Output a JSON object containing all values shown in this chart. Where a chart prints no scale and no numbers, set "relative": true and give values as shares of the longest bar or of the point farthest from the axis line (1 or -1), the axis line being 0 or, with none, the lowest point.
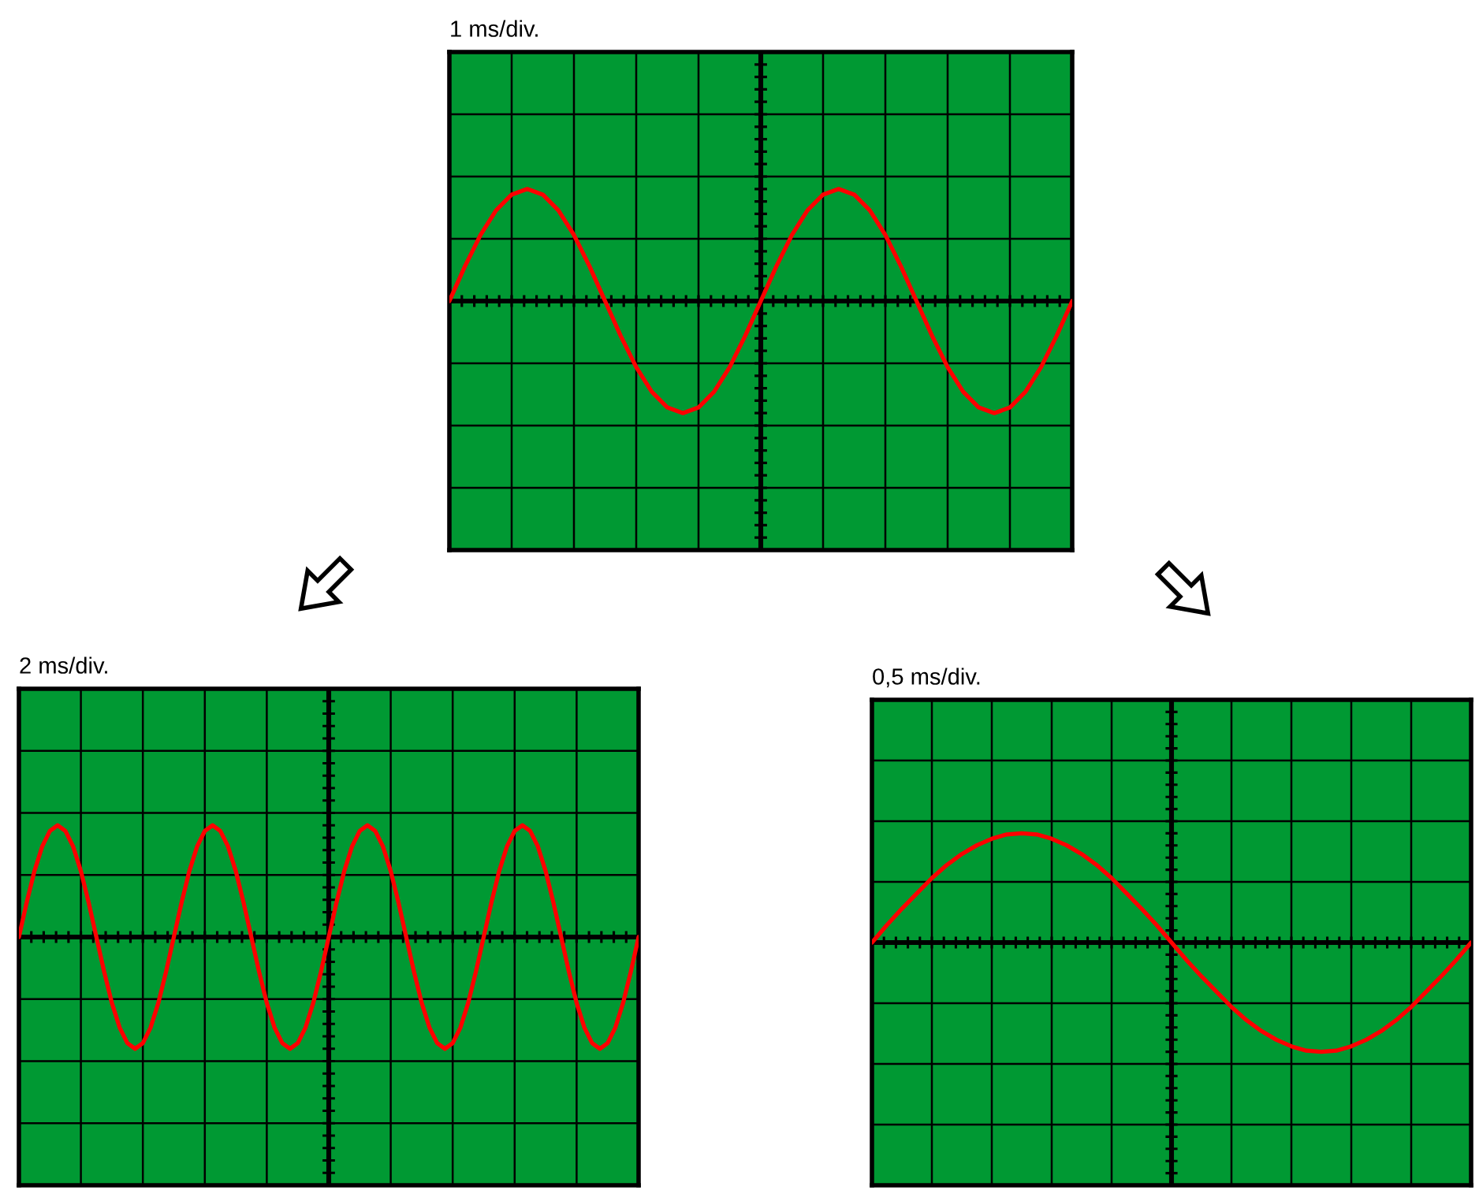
{
  "chart_data": [
    {
      "type": "line",
      "title": "1 ms/div.",
      "relative": true,
      "grid": true,
      "categories": [
        null,
        null,
        null,
        null,
        null,
        null,
        null,
        null,
        null,
        null,
        null,
        null,
        null,
        null,
        null,
        null,
        null,
        null,
        null,
        null,
        null,
        null,
        null,
        null,
        null,
        null,
        null,
        null,
        null,
        null,
        null,
        null,
        null,
        null,
        null,
        null,
        null,
        null,
        null,
        null,
        null
      ],
      "series": [
        {
          "color": "#ff0000",
          "values": [
            0,
            0.31,
            0.59,
            0.81,
            0.95,
            1,
            0.95,
            0.81,
            0.59,
            0.31,
            0,
            -0.31,
            -0.59,
            -0.81,
            -0.95,
            -1,
            -0.95,
            -0.81,
            -0.59,
            -0.31,
            0,
            0.31,
            0.59,
            0.81,
            0.95,
            1,
            0.95,
            0.81,
            0.59,
            0.31,
            0,
            -0.31,
            -0.59,
            -0.81,
            -0.95,
            -1,
            -0.95,
            -0.81,
            -0.59,
            -0.31,
            0
          ]
        }
      ]
    },
    {
      "type": "line",
      "title": "2 ms/div.",
      "relative": true,
      "grid": true,
      "categories": [
        null,
        null,
        null,
        null,
        null,
        null,
        null,
        null,
        null,
        null,
        null,
        null,
        null,
        null,
        null,
        null,
        null,
        null,
        null,
        null,
        null,
        null,
        null,
        null,
        null,
        null,
        null,
        null,
        null,
        null,
        null,
        null,
        null,
        null,
        null,
        null,
        null,
        null,
        null,
        null,
        null,
        null,
        null,
        null,
        null,
        null,
        null,
        null,
        null,
        null,
        null,
        null,
        null,
        null,
        null,
        null,
        null,
        null,
        null,
        null,
        null,
        null,
        null,
        null,
        null,
        null,
        null,
        null,
        null,
        null,
        null,
        null,
        null,
        null,
        null,
        null,
        null,
        null,
        null,
        null,
        null
      ],
      "series": [
        {
          "color": "#ff0000",
          "values": [
            0,
            0.31,
            0.59,
            0.81,
            0.95,
            1,
            0.95,
            0.81,
            0.59,
            0.31,
            0,
            -0.31,
            -0.59,
            -0.81,
            -0.95,
            -1,
            -0.95,
            -0.81,
            -0.59,
            -0.31,
            0,
            0.31,
            0.59,
            0.81,
            0.95,
            1,
            0.95,
            0.81,
            0.59,
            0.31,
            0,
            -0.31,
            -0.59,
            -0.81,
            -0.95,
            -1,
            -0.95,
            -0.81,
            -0.59,
            -0.31,
            0,
            0.31,
            0.59,
            0.81,
            0.95,
            1,
            0.95,
            0.81,
            0.59,
            0.31,
            0,
            -0.31,
            -0.59,
            -0.81,
            -0.95,
            -1,
            -0.95,
            -0.81,
            -0.59,
            -0.31,
            0,
            0.31,
            0.59,
            0.81,
            0.95,
            1,
            0.95,
            0.81,
            0.59,
            0.31,
            0,
            -0.31,
            -0.59,
            -0.81,
            -0.95,
            -1,
            -0.95,
            -0.81,
            -0.59,
            -0.31,
            0
          ]
        }
      ]
    },
    {
      "type": "line",
      "title": "0,5 ms/div.",
      "relative": true,
      "grid": true,
      "categories": [
        null,
        null,
        null,
        null,
        null,
        null,
        null,
        null,
        null,
        null,
        null,
        null,
        null,
        null,
        null,
        null,
        null,
        null,
        null,
        null,
        null,
        null,
        null,
        null,
        null,
        null,
        null,
        null,
        null,
        null,
        null,
        null,
        null,
        null,
        null,
        null,
        null,
        null,
        null,
        null,
        null
      ],
      "series": [
        {
          "color": "#ff0000",
          "values": [
            0,
            0.16,
            0.31,
            0.45,
            0.59,
            0.71,
            0.81,
            0.89,
            0.95,
            0.99,
            1,
            0.99,
            0.95,
            0.89,
            0.81,
            0.71,
            0.59,
            0.45,
            0.31,
            0.16,
            0,
            -0.16,
            -0.31,
            -0.45,
            -0.59,
            -0.71,
            -0.81,
            -0.89,
            -0.95,
            -0.99,
            -1,
            -0.99,
            -0.95,
            -0.89,
            -0.81,
            -0.71,
            -0.59,
            -0.45,
            -0.31,
            -0.16,
            0
          ]
        }
      ]
    }
  ]
}
